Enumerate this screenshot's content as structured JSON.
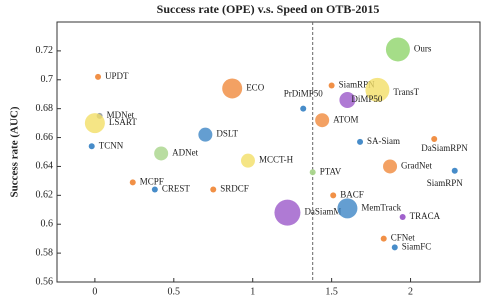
{
  "chart_data": {
    "type": "bubble",
    "title": "Success rate (OPE) v.s. Speed on OTB-2015",
    "y_label": "Success rate (AUC)",
    "labels": [
      "Ours",
      "UPDT",
      "SiamRPN",
      "ECO",
      "TransT",
      "PrDiMP50",
      "DiMP50",
      "MDNet",
      "LSART",
      "ATOM",
      "DSLT",
      "TCNN",
      "SA-Siam",
      "DaSiamRPN",
      "ADNet",
      "MCCT-H",
      "GradNet",
      "PTAV",
      "SiamRPN",
      "MCPF",
      "CREST",
      "SRDCF",
      "BACF",
      "DaSiamM",
      "MemTrack",
      "TRACA",
      "CFNet",
      "SiamFC"
    ],
    "x": [
      1.92,
      0.02,
      1.5,
      0.87,
      1.79,
      1.32,
      1.6,
      0.03,
      0.0,
      1.44,
      0.7,
      -0.02,
      1.68,
      2.15,
      0.42,
      0.97,
      1.87,
      1.38,
      2.28,
      0.24,
      0.38,
      0.75,
      1.51,
      1.22,
      1.6,
      1.95,
      1.83,
      1.9
    ],
    "y": [
      0.721,
      0.702,
      0.696,
      0.694,
      0.693,
      0.68,
      0.686,
      0.675,
      0.67,
      0.672,
      0.662,
      0.654,
      0.657,
      0.659,
      0.649,
      0.644,
      0.64,
      0.636,
      0.637,
      0.629,
      0.624,
      0.624,
      0.62,
      0.608,
      0.611,
      0.605,
      0.59,
      0.584
    ],
    "sizes": [
      12,
      3,
      3,
      10,
      12,
      3,
      8,
      3,
      10,
      7,
      7,
      3,
      3,
      3,
      7,
      7,
      7,
      3,
      3,
      3,
      3,
      3,
      3,
      13,
      10,
      3,
      3,
      3
    ],
    "colors": [
      "#8fd46a",
      "#f08a3c",
      "#f08a3c",
      "#f08a3c",
      "#f2df66",
      "#3d86c6",
      "#9b59c9",
      "#9aa0a6",
      "#f2df66",
      "#f08a3c",
      "#3d86c6",
      "#3d86c6",
      "#3d86c6",
      "#f08a3c",
      "#a8d48a",
      "#f2df66",
      "#f08a3c",
      "#a8d48a",
      "#3d86c6",
      "#f08a3c",
      "#3d86c6",
      "#f08a3c",
      "#f08a3c",
      "#9b59c9",
      "#3d86c6",
      "#9b59c9",
      "#f08a3c",
      "#3d86c6"
    ],
    "xlim": [
      -0.24,
      2.44
    ],
    "ylim": [
      0.56,
      0.74
    ],
    "xticks": [
      0,
      0.5,
      1,
      1.5,
      2
    ],
    "yticks": [
      0.56,
      0.58,
      0.6,
      0.62,
      0.64,
      0.66,
      0.68,
      0.7,
      0.72
    ],
    "reference_x": 1.38
  }
}
